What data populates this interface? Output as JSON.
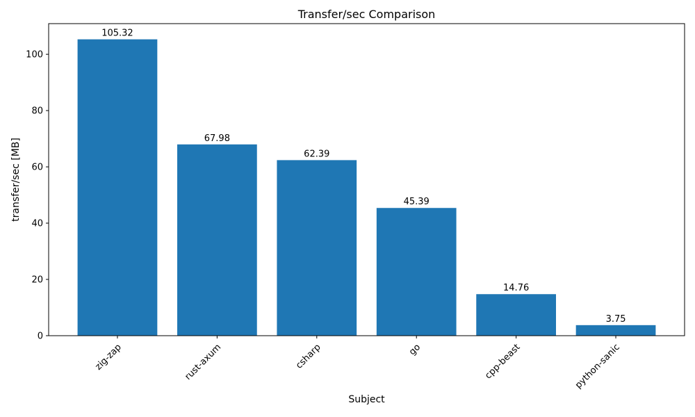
{
  "chart_data": {
    "type": "bar",
    "title": "Transfer/sec Comparison",
    "xlabel": "Subject",
    "ylabel": "transfer/sec [MB]",
    "categories": [
      "zig-zap",
      "rust-axum",
      "csharp",
      "go",
      "cpp-beast",
      "python-sanic"
    ],
    "values": [
      105.32,
      67.98,
      62.39,
      45.39,
      14.76,
      3.75
    ],
    "value_labels": [
      "105.32",
      "67.98",
      "62.39",
      "45.39",
      "14.76",
      "3.75"
    ],
    "yticks": [
      0,
      20,
      40,
      60,
      80,
      100
    ],
    "ylim": [
      0,
      110.9
    ],
    "x_tick_rotation_deg": 45,
    "grid": false,
    "legend": false,
    "bar_color": "#1f77b4",
    "frame_color": "#000000",
    "text_color": "#000000",
    "background_color": "#ffffff"
  }
}
